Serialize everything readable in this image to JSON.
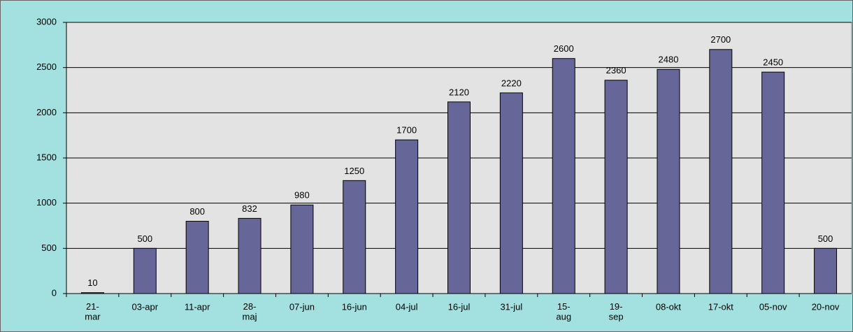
{
  "chart_data": {
    "type": "bar",
    "categories": [
      "21-\nmar",
      "03-apr",
      "11-apr",
      "28-\nmaj",
      "07-jun",
      "16-jun",
      "04-jul",
      "16-jul",
      "31-jul",
      "15-\naug",
      "19-\nsep",
      "08-okt",
      "17-okt",
      "05-nov",
      "20-nov"
    ],
    "values": [
      10,
      500,
      800,
      832,
      980,
      1250,
      1700,
      2120,
      2220,
      2600,
      2360,
      2480,
      2700,
      2450,
      500
    ],
    "color": "#666699",
    "ylim": [
      0,
      3000
    ],
    "yticks": [
      0,
      500,
      1000,
      1500,
      2000,
      2500,
      3000
    ],
    "grid": true
  }
}
